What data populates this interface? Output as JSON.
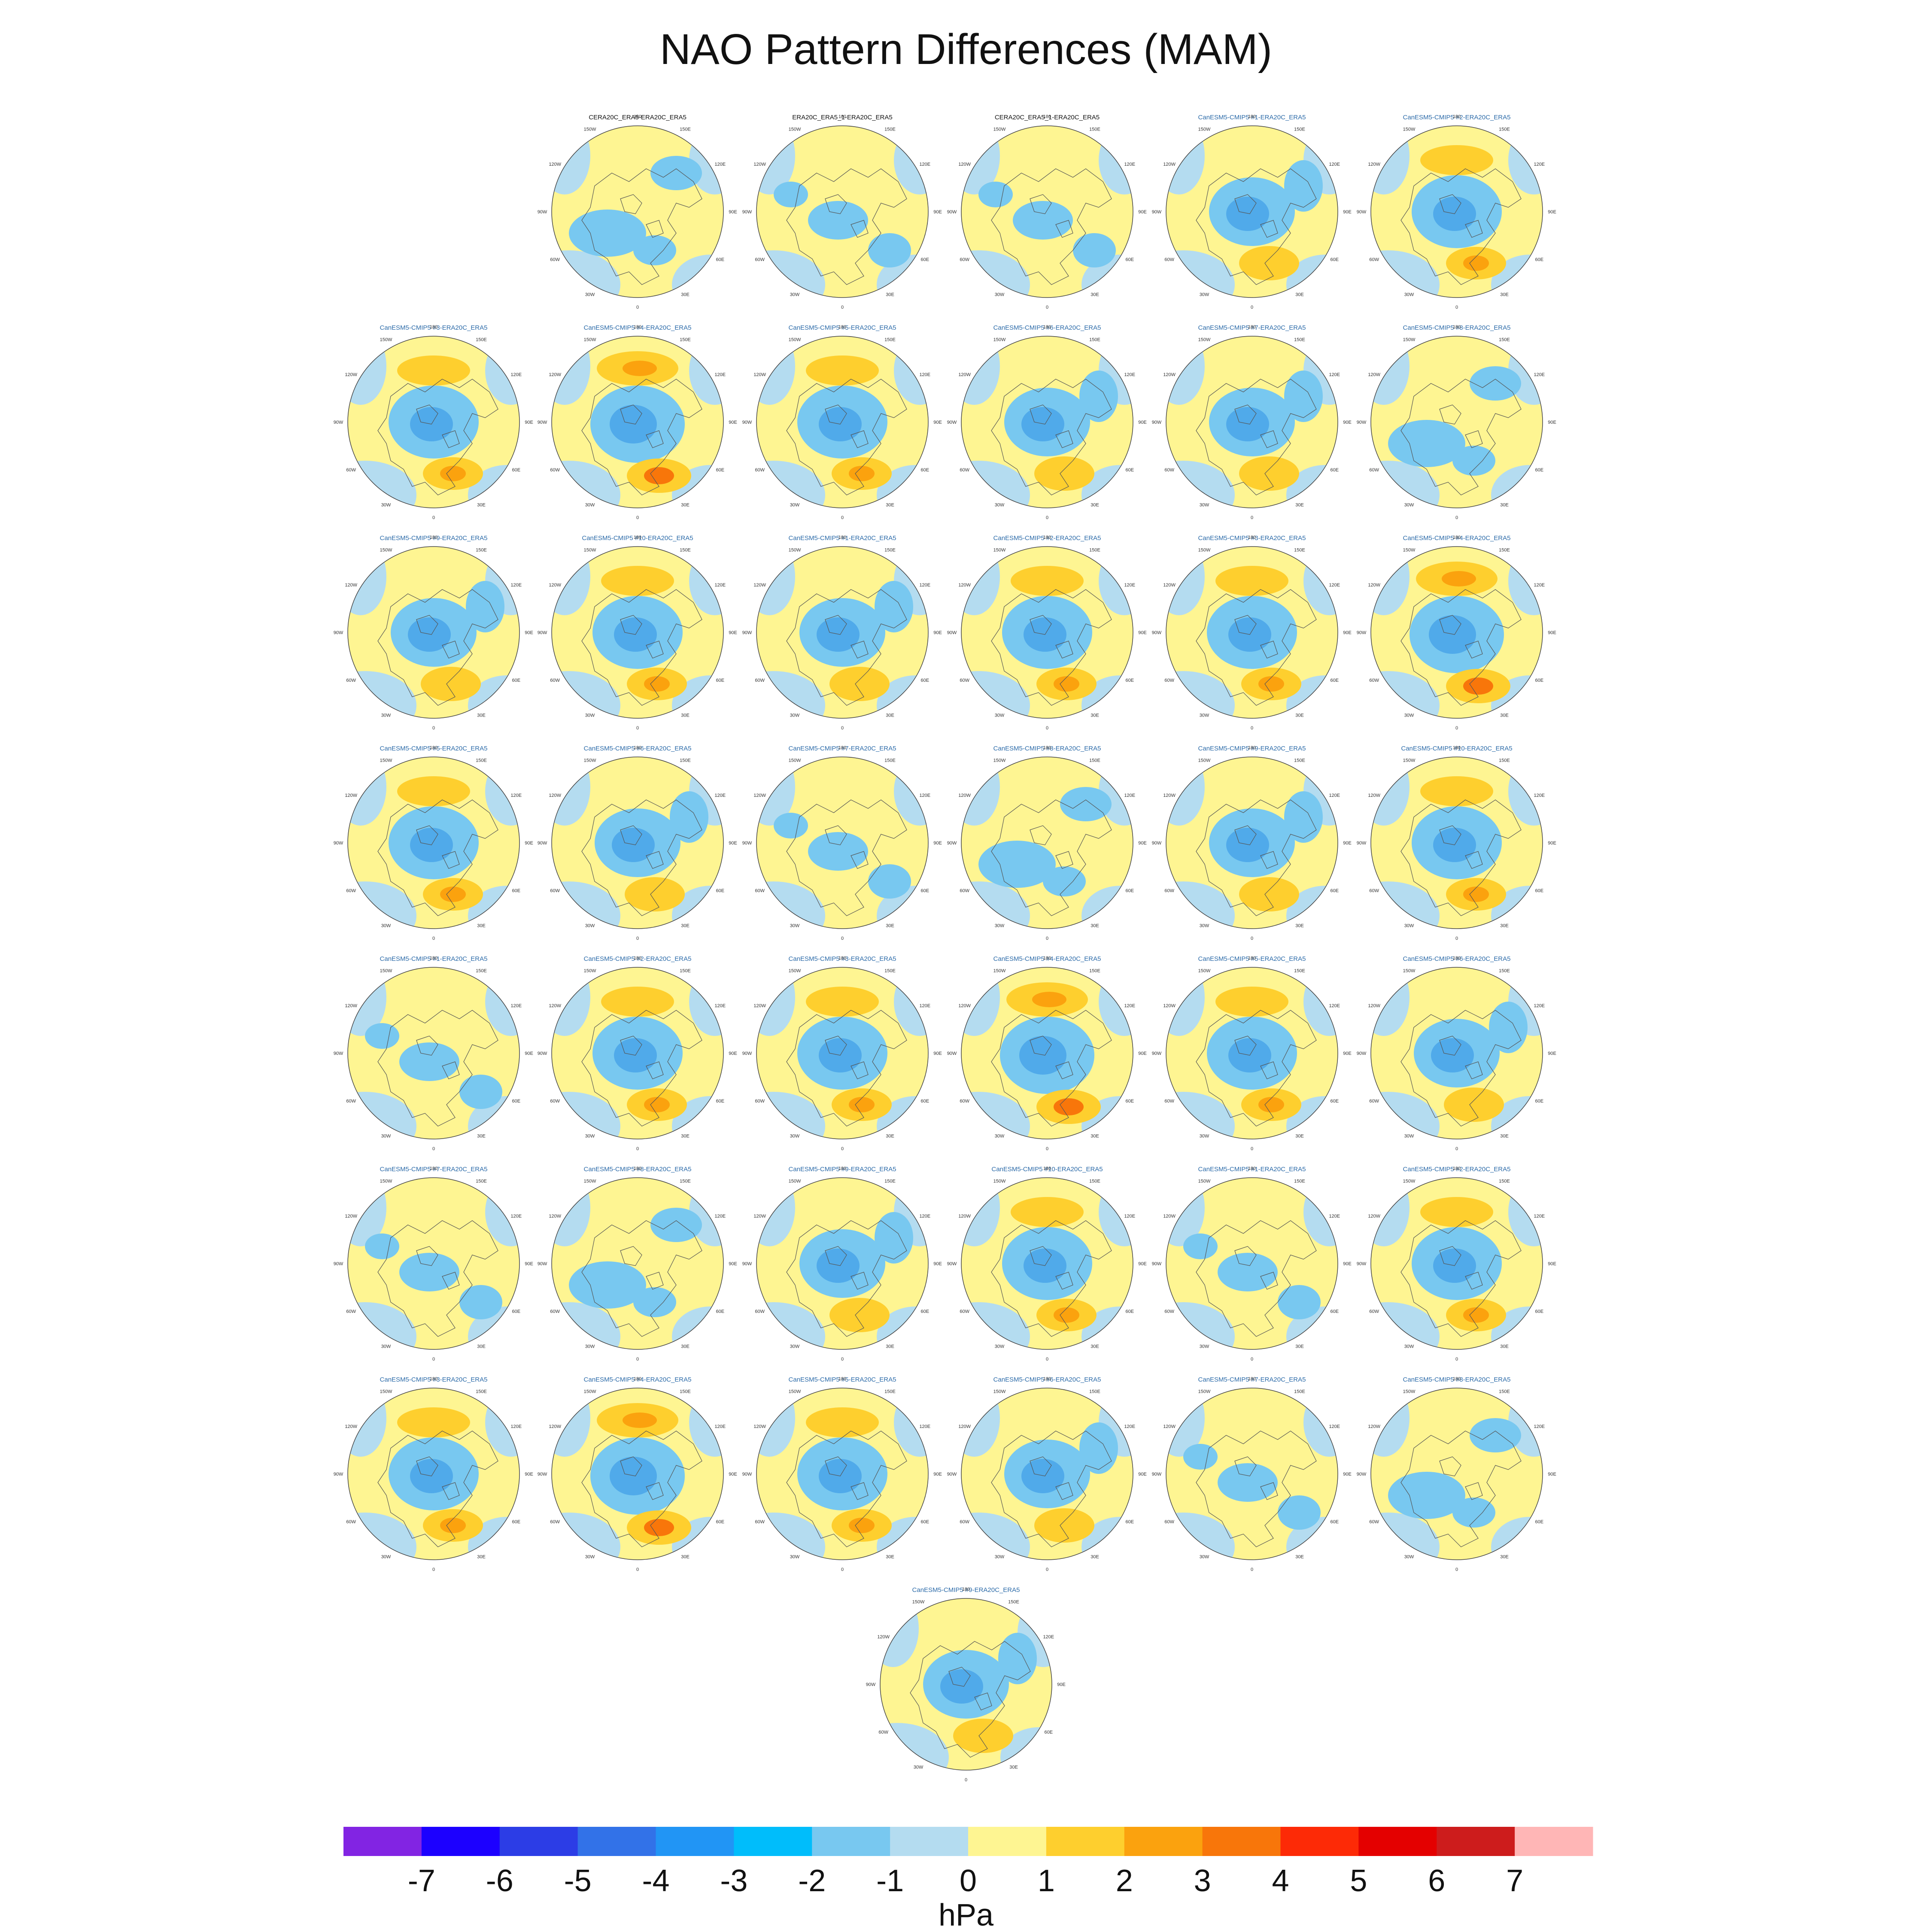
{
  "title": "NAO Pattern Differences (MAM)",
  "lon_ticks": [
    "180",
    "150E",
    "120E",
    "90E",
    "60E",
    "30E",
    "0",
    "30W",
    "60W",
    "90W",
    "120W",
    "150W"
  ],
  "colors": {
    "sea": "#b4dcf0",
    "land_outline": "#555555",
    "neg2": "#78c8f0",
    "neg3": "#50aaea",
    "pos1": "#fef592",
    "pos2": "#fecf2e",
    "pos3": "#fba20e",
    "pos4": "#f8760a"
  },
  "panels": [
    {
      "title": "CERA20C_ERA5-ERA20C_ERA5",
      "kind": "obs",
      "pattern": 0
    },
    {
      "title": "ERA20C_ERA5_1-ERA20C_ERA5",
      "kind": "obs",
      "pattern": 1
    },
    {
      "title": "CERA20C_ERA5_1-ERA20C_ERA5",
      "kind": "obs",
      "pattern": 1
    },
    {
      "title": "CanESM5-CMIP5 #1-ERA20C_ERA5",
      "kind": "model",
      "pattern": 2
    },
    {
      "title": "CanESM5-CMIP5 #2-ERA20C_ERA5",
      "kind": "model",
      "pattern": 3
    },
    {
      "title": "CanESM5-CMIP5 #3-ERA20C_ERA5",
      "kind": "model",
      "pattern": 3
    },
    {
      "title": "CanESM5-CMIP5 #4-ERA20C_ERA5",
      "kind": "model",
      "pattern": 4
    },
    {
      "title": "CanESM5-CMIP5 #5-ERA20C_ERA5",
      "kind": "model",
      "pattern": 3
    },
    {
      "title": "CanESM5-CMIP5 #6-ERA20C_ERA5",
      "kind": "model",
      "pattern": 2
    },
    {
      "title": "CanESM5-CMIP5 #7-ERA20C_ERA5",
      "kind": "model",
      "pattern": 2
    },
    {
      "title": "CanESM5-CMIP5 #8-ERA20C_ERA5",
      "kind": "model",
      "pattern": 0
    },
    {
      "title": "CanESM5-CMIP5 #9-ERA20C_ERA5",
      "kind": "model",
      "pattern": 2
    },
    {
      "title": "CanESM5-CMIP5 #10-ERA20C_ERA5",
      "kind": "model",
      "pattern": 3
    },
    {
      "title": "CanESM5-CMIP5 #1-ERA20C_ERA5",
      "kind": "model",
      "pattern": 2
    },
    {
      "title": "CanESM5-CMIP5 #2-ERA20C_ERA5",
      "kind": "model",
      "pattern": 3
    },
    {
      "title": "CanESM5-CMIP5 #3-ERA20C_ERA5",
      "kind": "model",
      "pattern": 3
    },
    {
      "title": "CanESM5-CMIP5 #4-ERA20C_ERA5",
      "kind": "model",
      "pattern": 4
    },
    {
      "title": "CanESM5-CMIP5 #5-ERA20C_ERA5",
      "kind": "model",
      "pattern": 3
    },
    {
      "title": "CanESM5-CMIP5 #6-ERA20C_ERA5",
      "kind": "model",
      "pattern": 2
    },
    {
      "title": "CanESM5-CMIP5 #7-ERA20C_ERA5",
      "kind": "model",
      "pattern": 1
    },
    {
      "title": "CanESM5-CMIP5 #8-ERA20C_ERA5",
      "kind": "model",
      "pattern": 0
    },
    {
      "title": "CanESM5-CMIP5 #9-ERA20C_ERA5",
      "kind": "model",
      "pattern": 2
    },
    {
      "title": "CanESM5-CMIP5 #10-ERA20C_ERA5",
      "kind": "model",
      "pattern": 3
    },
    {
      "title": "CanESM5-CMIP5 #1-ERA20C_ERA5",
      "kind": "model",
      "pattern": 1
    },
    {
      "title": "CanESM5-CMIP5 #2-ERA20C_ERA5",
      "kind": "model",
      "pattern": 3
    },
    {
      "title": "CanESM5-CMIP5 #3-ERA20C_ERA5",
      "kind": "model",
      "pattern": 3
    },
    {
      "title": "CanESM5-CMIP5 #4-ERA20C_ERA5",
      "kind": "model",
      "pattern": 4
    },
    {
      "title": "CanESM5-CMIP5 #5-ERA20C_ERA5",
      "kind": "model",
      "pattern": 3
    },
    {
      "title": "CanESM5-CMIP5 #6-ERA20C_ERA5",
      "kind": "model",
      "pattern": 2
    },
    {
      "title": "CanESM5-CMIP5 #7-ERA20C_ERA5",
      "kind": "model",
      "pattern": 1
    },
    {
      "title": "CanESM5-CMIP5 #8-ERA20C_ERA5",
      "kind": "model",
      "pattern": 0
    },
    {
      "title": "CanESM5-CMIP5 #9-ERA20C_ERA5",
      "kind": "model",
      "pattern": 2
    },
    {
      "title": "CanESM5-CMIP5 #10-ERA20C_ERA5",
      "kind": "model",
      "pattern": 3
    },
    {
      "title": "CanESM5-CMIP5 #1-ERA20C_ERA5",
      "kind": "model",
      "pattern": 1
    },
    {
      "title": "CanESM5-CMIP5 #2-ERA20C_ERA5",
      "kind": "model",
      "pattern": 3
    },
    {
      "title": "CanESM5-CMIP5 #3-ERA20C_ERA5",
      "kind": "model",
      "pattern": 3
    },
    {
      "title": "CanESM5-CMIP5 #4-ERA20C_ERA5",
      "kind": "model",
      "pattern": 4
    },
    {
      "title": "CanESM5-CMIP5 #5-ERA20C_ERA5",
      "kind": "model",
      "pattern": 3
    },
    {
      "title": "CanESM5-CMIP5 #6-ERA20C_ERA5",
      "kind": "model",
      "pattern": 2
    },
    {
      "title": "CanESM5-CMIP5 #7-ERA20C_ERA5",
      "kind": "model",
      "pattern": 1
    },
    {
      "title": "CanESM5-CMIP5 #8-ERA20C_ERA5",
      "kind": "model",
      "pattern": 0
    },
    {
      "title": "CanESM5-CMIP5 #9-ERA20C_ERA5",
      "kind": "model",
      "pattern": 2
    }
  ],
  "colorbar": {
    "unit": "hPa",
    "labels": [
      "-7",
      "-6",
      "-5",
      "-4",
      "-3",
      "-2",
      "-1",
      "0",
      "1",
      "2",
      "3",
      "4",
      "5",
      "6",
      "7"
    ],
    "colors": [
      "#8224e3",
      "#1c00ff",
      "#2c3de6",
      "#3272e8",
      "#2195f5",
      "#00bdfb",
      "#78c8f0",
      "#b4dcf0",
      "#fef592",
      "#fecf2e",
      "#fba20e",
      "#f8760a",
      "#fd2a06",
      "#e40000",
      "#cd1c1c",
      "#ffb6b6"
    ]
  }
}
